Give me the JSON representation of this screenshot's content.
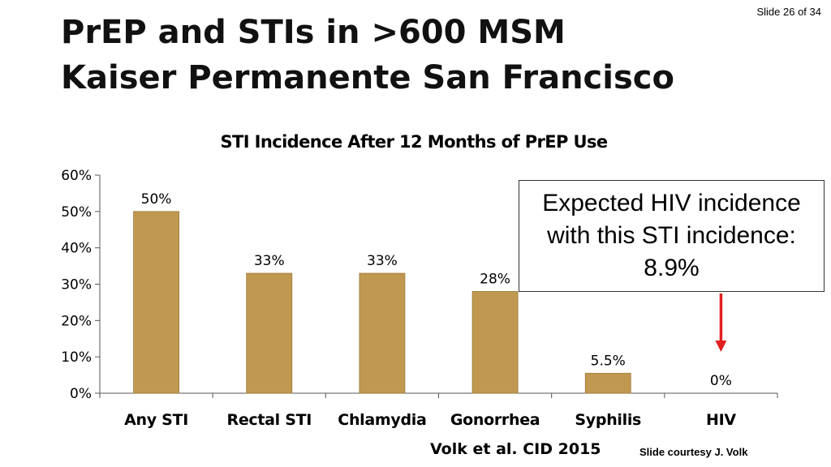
{
  "slide": {
    "number_label": "Slide 26 of 34"
  },
  "title": {
    "line1": "PrEP and STIs in >600 MSM",
    "line2": "Kaiser Permanente San Francisco"
  },
  "callout": {
    "text": "Expected HIV incidence with this STI incidence: 8.9%"
  },
  "footer": {
    "citation": "Volk et al.  CID  2015",
    "courtesy": "Slide courtesy J. Volk"
  },
  "colors": {
    "bar": "#C09850",
    "bar_edge": "#9B7A3A",
    "arrow": "#E02020"
  },
  "chart_data": {
    "type": "bar",
    "title": "STI Incidence After 12 Months of PrEP Use",
    "xlabel": "",
    "ylabel": "",
    "categories": [
      "Any STI",
      "Rectal STI",
      "Chlamydia",
      "Gonorrhea",
      "Syphilis",
      "HIV"
    ],
    "values": [
      50,
      33,
      33,
      28,
      5.5,
      0
    ],
    "data_labels": [
      "50%",
      "33%",
      "33%",
      "28%",
      "5.5%",
      "0%"
    ],
    "ylim": [
      0,
      60
    ],
    "yticks": [
      "0%",
      "10%",
      "20%",
      "30%",
      "40%",
      "50%",
      "60%"
    ],
    "grid": false,
    "legend": "none"
  }
}
